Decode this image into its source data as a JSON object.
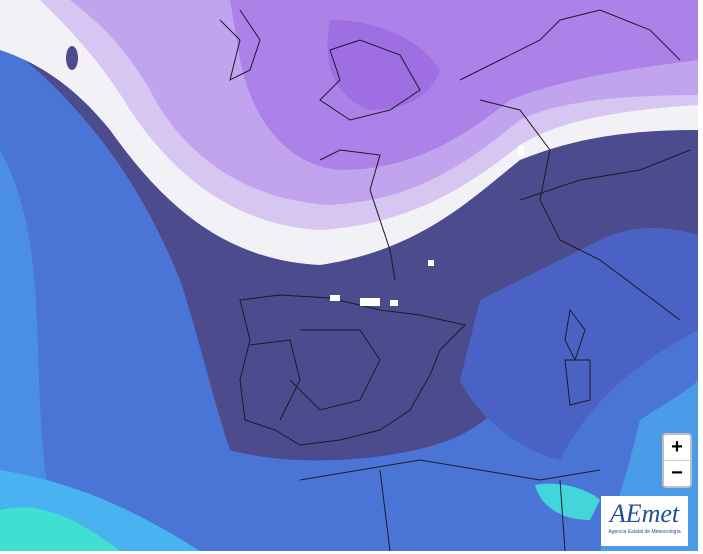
{
  "zoom_controls": {
    "zoom_in": "+",
    "zoom_out": "−"
  },
  "logo": {
    "name": "AEmet",
    "subtitle": "Agencia Estatal de Meteorología"
  }
}
